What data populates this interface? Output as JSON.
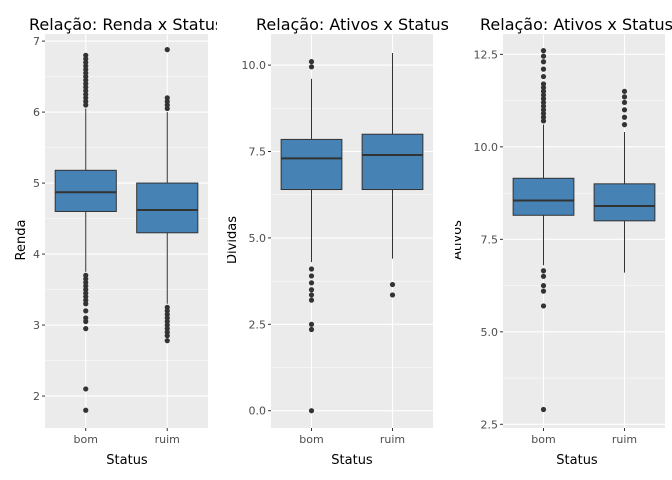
{
  "chart_data": [
    {
      "type": "boxplot",
      "title": "Relação: Renda x Status",
      "xlabel": "Status",
      "ylabel": "Renda",
      "categories": [
        "bom",
        "ruim"
      ],
      "ylim": [
        1.55,
        7.1
      ],
      "yticks": [
        2,
        3,
        4,
        5,
        6,
        7
      ],
      "ytick_labels": [
        "2",
        "3",
        "4",
        "5",
        "6",
        "7"
      ],
      "fill_color": "#4682b4",
      "panel_color": "#ebebeb",
      "grid": true,
      "boxes": [
        {
          "category": "bom",
          "whisker_low": 3.75,
          "q1": 4.6,
          "median": 4.87,
          "q3": 5.18,
          "whisker_high": 6.05,
          "outliers": [
            6.1,
            6.15,
            6.2,
            6.25,
            6.3,
            6.35,
            6.4,
            6.45,
            6.5,
            6.55,
            6.6,
            6.65,
            6.7,
            6.75,
            6.8,
            3.7,
            3.65,
            3.6,
            3.55,
            3.5,
            3.45,
            3.4,
            3.35,
            3.3,
            3.2,
            3.1,
            3.05,
            2.95,
            2.1,
            1.8
          ]
        },
        {
          "category": "ruim",
          "whisker_low": 3.3,
          "q1": 4.3,
          "median": 4.62,
          "q3": 5.0,
          "whisker_high": 6.0,
          "outliers": [
            6.05,
            6.1,
            6.15,
            6.2,
            6.88,
            3.25,
            3.2,
            3.15,
            3.1,
            3.05,
            3.0,
            2.95,
            2.9,
            2.85,
            2.78
          ]
        }
      ]
    },
    {
      "type": "boxplot",
      "title": "Relação: Ativos x Status",
      "xlabel": "Status",
      "ylabel": "Dividas",
      "categories": [
        "bom",
        "ruim"
      ],
      "ylim": [
        -0.5,
        10.9
      ],
      "yticks": [
        0,
        2.5,
        5,
        7.5,
        10
      ],
      "ytick_labels": [
        "0.0",
        "2.5",
        "5.0",
        "7.5",
        "10.0"
      ],
      "fill_color": "#4682b4",
      "panel_color": "#ebebeb",
      "grid": true,
      "boxes": [
        {
          "category": "bom",
          "whisker_low": 4.3,
          "q1": 6.4,
          "median": 7.3,
          "q3": 7.85,
          "whisker_high": 9.6,
          "outliers": [
            10.1,
            9.95,
            4.1,
            3.9,
            3.7,
            3.5,
            3.35,
            3.2,
            2.5,
            2.35,
            0.0
          ]
        },
        {
          "category": "ruim",
          "whisker_low": 4.4,
          "q1": 6.4,
          "median": 7.4,
          "q3": 8.0,
          "whisker_high": 10.35,
          "outliers": [
            3.65,
            3.35
          ]
        }
      ]
    },
    {
      "type": "boxplot",
      "title": "Relação: Ativos x Status",
      "xlabel": "Status",
      "ylabel": "Ativos",
      "categories": [
        "bom",
        "ruim"
      ],
      "ylim": [
        2.4,
        13.05
      ],
      "yticks": [
        2.5,
        5,
        7.5,
        10,
        12.5
      ],
      "ytick_labels": [
        "2.5",
        "5.0",
        "7.5",
        "10.0",
        "12.5"
      ],
      "fill_color": "#4682b4",
      "panel_color": "#ebebeb",
      "grid": true,
      "boxes": [
        {
          "category": "bom",
          "whisker_low": 6.8,
          "q1": 8.15,
          "median": 8.55,
          "q3": 9.15,
          "whisker_high": 10.6,
          "outliers": [
            10.7,
            10.8,
            10.9,
            11.0,
            11.1,
            11.2,
            11.3,
            11.4,
            11.5,
            11.6,
            11.7,
            11.9,
            12.1,
            12.3,
            12.45,
            12.6,
            6.65,
            6.5,
            6.25,
            6.1,
            5.7,
            2.9
          ]
        },
        {
          "category": "ruim",
          "whisker_low": 6.6,
          "q1": 8.0,
          "median": 8.4,
          "q3": 9.0,
          "whisker_high": 10.4,
          "outliers": [
            10.6,
            10.8,
            11.0,
            11.2,
            11.35,
            11.5
          ]
        }
      ]
    }
  ]
}
